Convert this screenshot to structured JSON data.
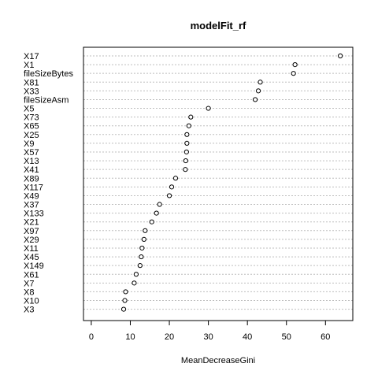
{
  "chart_data": {
    "type": "scatter",
    "title": "modelFit_rf",
    "xlabel": "MeanDecreaseGini",
    "ylabel": "",
    "xlim": [
      -2,
      67
    ],
    "xticks": [
      0,
      10,
      20,
      30,
      40,
      50,
      60
    ],
    "grid": "dotted horizontal guide per variable",
    "legend": "none",
    "points": [
      {
        "label": "X17",
        "value": 63.8
      },
      {
        "label": "X1",
        "value": 52.2
      },
      {
        "label": "fileSizeBytes",
        "value": 51.8
      },
      {
        "label": "X81",
        "value": 43.3
      },
      {
        "label": "X33",
        "value": 42.8
      },
      {
        "label": "fileSizeAsm",
        "value": 42.0
      },
      {
        "label": "X5",
        "value": 30.0
      },
      {
        "label": "X73",
        "value": 25.5
      },
      {
        "label": "X65",
        "value": 25.0
      },
      {
        "label": "X25",
        "value": 24.5
      },
      {
        "label": "X9",
        "value": 24.5
      },
      {
        "label": "X57",
        "value": 24.4
      },
      {
        "label": "X13",
        "value": 24.2
      },
      {
        "label": "X41",
        "value": 24.1
      },
      {
        "label": "X89",
        "value": 21.6
      },
      {
        "label": "X117",
        "value": 20.6
      },
      {
        "label": "X49",
        "value": 20.0
      },
      {
        "label": "X37",
        "value": 17.5
      },
      {
        "label": "X133",
        "value": 16.7
      },
      {
        "label": "X21",
        "value": 15.5
      },
      {
        "label": "X97",
        "value": 13.8
      },
      {
        "label": "X29",
        "value": 13.5
      },
      {
        "label": "X11",
        "value": 13.0
      },
      {
        "label": "X45",
        "value": 12.8
      },
      {
        "label": "X149",
        "value": 12.5
      },
      {
        "label": "X61",
        "value": 11.5
      },
      {
        "label": "X7",
        "value": 11.0
      },
      {
        "label": "X8",
        "value": 8.8
      },
      {
        "label": "X10",
        "value": 8.6
      },
      {
        "label": "X3",
        "value": 8.3
      }
    ]
  }
}
